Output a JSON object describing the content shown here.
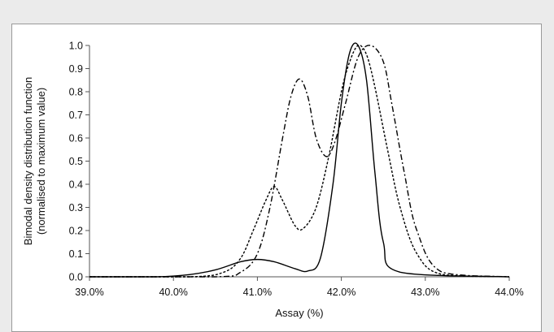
{
  "chart_data": {
    "type": "line",
    "title": "",
    "xlabel": "Assay (%)",
    "ylabel_line1": "Bimodal density distribution function",
    "ylabel_line2": "(normalised to maximum value)",
    "xlim": [
      39.0,
      44.0
    ],
    "ylim": [
      0.0,
      1.0
    ],
    "x_tick_values": [
      39.0,
      40.0,
      41.0,
      42.0,
      43.0,
      44.0
    ],
    "x_tick_labels": [
      "39.0%",
      "40.0%",
      "41.0%",
      "42.0%",
      "43.0%",
      "44.0%"
    ],
    "y_tick_values": [
      0.0,
      0.1,
      0.2,
      0.3,
      0.4,
      0.5,
      0.6,
      0.7,
      0.8,
      0.9,
      1.0
    ],
    "y_tick_labels": [
      "0.0",
      "0.1",
      "0.2",
      "0.3",
      "0.4",
      "0.5",
      "0.6",
      "0.7",
      "0.8",
      "0.9",
      "1.0"
    ],
    "grid": false,
    "legend": "none",
    "series": [
      {
        "style": "solid",
        "color": "#000000",
        "x": [
          39.0,
          39.8,
          40.2,
          40.5,
          40.8,
          41.0,
          41.2,
          41.45,
          41.6,
          41.75,
          41.9,
          42.0,
          42.1,
          42.2,
          42.3,
          42.4,
          42.5,
          42.7,
          44.0
        ],
        "y": [
          0.0,
          0.0,
          0.01,
          0.03,
          0.065,
          0.075,
          0.065,
          0.035,
          0.025,
          0.08,
          0.4,
          0.75,
          0.97,
          1.0,
          0.85,
          0.45,
          0.15,
          0.02,
          0.0
        ]
      },
      {
        "style": "dashed",
        "color": "#000000",
        "x": [
          39.0,
          40.2,
          40.6,
          40.8,
          40.95,
          41.1,
          41.2,
          41.3,
          41.45,
          41.55,
          41.7,
          41.85,
          42.0,
          42.1,
          42.2,
          42.3,
          42.4,
          42.55,
          42.7,
          42.9,
          43.2,
          44.0
        ],
        "y": [
          0.0,
          0.0,
          0.02,
          0.08,
          0.2,
          0.33,
          0.39,
          0.33,
          0.22,
          0.21,
          0.3,
          0.52,
          0.8,
          0.93,
          1.0,
          0.96,
          0.82,
          0.55,
          0.3,
          0.1,
          0.01,
          0.0
        ]
      },
      {
        "style": "dash-dot",
        "color": "#000000",
        "x": [
          39.0,
          40.5,
          40.8,
          41.0,
          41.15,
          41.3,
          41.4,
          41.5,
          41.6,
          41.7,
          41.82,
          41.92,
          42.05,
          42.2,
          42.35,
          42.5,
          42.6,
          42.75,
          42.9,
          43.2,
          44.0
        ],
        "y": [
          0.0,
          0.0,
          0.02,
          0.1,
          0.3,
          0.6,
          0.78,
          0.855,
          0.78,
          0.6,
          0.52,
          0.58,
          0.75,
          0.95,
          1.0,
          0.93,
          0.75,
          0.45,
          0.2,
          0.02,
          0.0
        ]
      }
    ]
  }
}
